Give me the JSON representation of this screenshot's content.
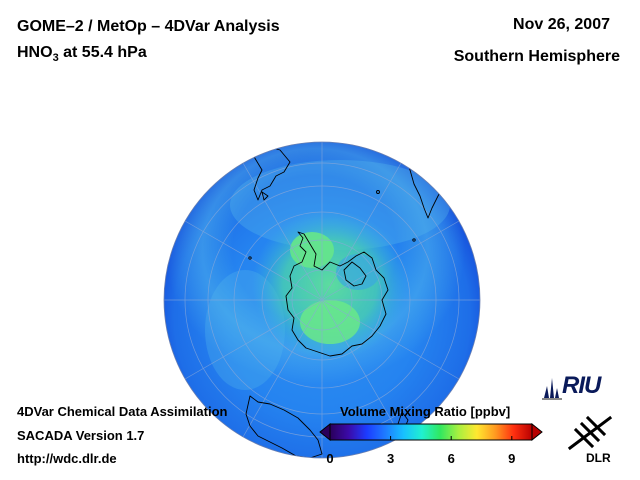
{
  "header": {
    "title": "GOME–2 / MetOp – 4DVar Analysis",
    "species_prefix": "HNO",
    "species_sub": "3",
    "species_suffix": " at 55.4 hPa",
    "date": "Nov 26, 2007",
    "hemisphere": "Southern Hemisphere"
  },
  "footer": {
    "line1": "4DVar Chemical Data Assimilation",
    "line2": "SACADA Version 1.7",
    "line3": "http://wdc.dlr.de"
  },
  "colorbar": {
    "title": "Volume Mixing Ratio [ppbv]",
    "range": [
      0,
      10
    ],
    "ticks": [
      {
        "value": 0,
        "label": "0"
      },
      {
        "value": 3,
        "label": "3"
      },
      {
        "value": 6,
        "label": "6"
      },
      {
        "value": 9,
        "label": "9"
      }
    ],
    "stops": [
      "#2a005a",
      "#3b0aa8",
      "#1c3cff",
      "#1e7bff",
      "#18c0ff",
      "#20f0d0",
      "#30e860",
      "#a8f040",
      "#ffe830",
      "#ff9a20",
      "#ff3010",
      "#b80000"
    ]
  },
  "map": {
    "projection": "orthographic",
    "center": "South Pole",
    "colors": {
      "ocean_base": "#1e78f0",
      "ocean_edge": "#1448d8",
      "belt_low": "#3aa0f0",
      "vortex_high": "#58d890",
      "coast": "#000000",
      "grid": "#8aa8d8"
    }
  },
  "logos": {
    "riu": "RIU",
    "dlr": "DLR"
  }
}
